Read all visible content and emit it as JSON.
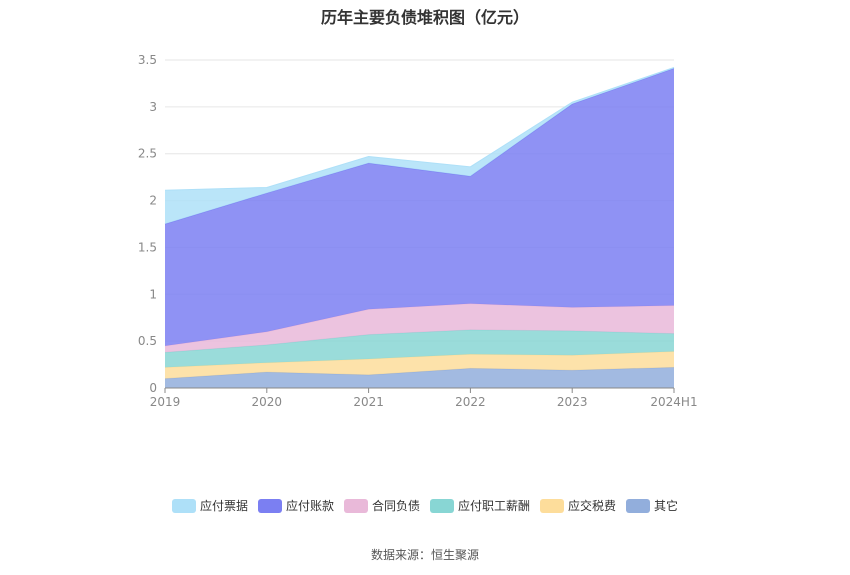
{
  "chart_data": {
    "type": "area",
    "stacked": true,
    "title": "历年主要负债堆积图（亿元）",
    "categories": [
      "2019",
      "2020",
      "2021",
      "2022",
      "2023",
      "2024H1"
    ],
    "ylim": [
      0,
      3.5
    ],
    "yticks": [
      "0",
      "0.5",
      "1",
      "1.5",
      "2",
      "2.5",
      "3",
      "3.5"
    ],
    "grid": true,
    "legend_position": "bottom",
    "series": [
      {
        "name": "其它",
        "color": "#92aedc",
        "values": [
          0.1,
          0.17,
          0.14,
          0.21,
          0.19,
          0.22
        ]
      },
      {
        "name": "应交税费",
        "color": "#fddd9b",
        "values": [
          0.12,
          0.1,
          0.17,
          0.15,
          0.16,
          0.17
        ]
      },
      {
        "name": "应付职工薪酬",
        "color": "#88d6d4",
        "values": [
          0.16,
          0.19,
          0.26,
          0.26,
          0.26,
          0.19
        ]
      },
      {
        "name": "合同负债",
        "color": "#e9b9d9",
        "values": [
          0.07,
          0.14,
          0.27,
          0.28,
          0.25,
          0.3
        ]
      },
      {
        "name": "应付账款",
        "color": "#7b7ff2",
        "values": [
          1.3,
          1.48,
          1.56,
          1.36,
          2.17,
          2.53
        ]
      },
      {
        "name": "应付票据",
        "color": "#aee0f8",
        "values": [
          0.36,
          0.06,
          0.07,
          0.1,
          0.02,
          0.01
        ]
      }
    ]
  },
  "legend_order": [
    "应付票据",
    "应付账款",
    "合同负债",
    "应付职工薪酬",
    "应交税费",
    "其它"
  ],
  "source": "数据来源：恒生聚源"
}
